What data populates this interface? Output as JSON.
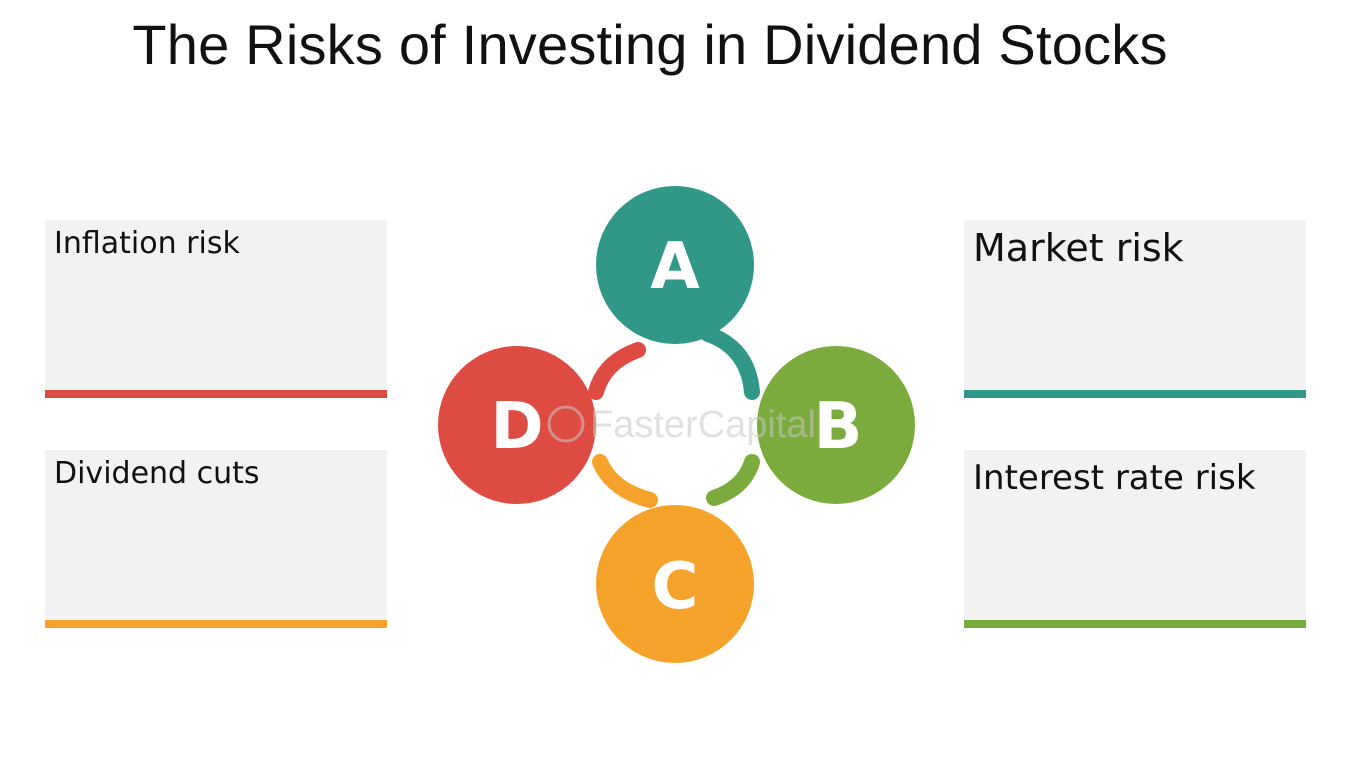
{
  "title": "The Risks of Investing in Dividend Stocks",
  "colors": {
    "A": "#319786",
    "B": "#7bab3d",
    "C": "#f4a229",
    "D": "#de4b43",
    "box_bg": "#f2f2f2"
  },
  "nodes": [
    {
      "letter": "A",
      "color": "#319786"
    },
    {
      "letter": "B",
      "color": "#7bab3d"
    },
    {
      "letter": "C",
      "color": "#f4a229"
    },
    {
      "letter": "D",
      "color": "#de4b43"
    }
  ],
  "boxes": {
    "top_left": {
      "label": "Inflation risk",
      "bar_color": "#de4b43"
    },
    "bottom_left": {
      "label": "Dividend cuts",
      "bar_color": "#f4a229"
    },
    "top_right": {
      "label": "Market risk",
      "bar_color": "#319786"
    },
    "bottom_right": {
      "label": "Interest rate risk",
      "bar_color": "#7bab3d"
    }
  },
  "watermark": "FasterCapital"
}
